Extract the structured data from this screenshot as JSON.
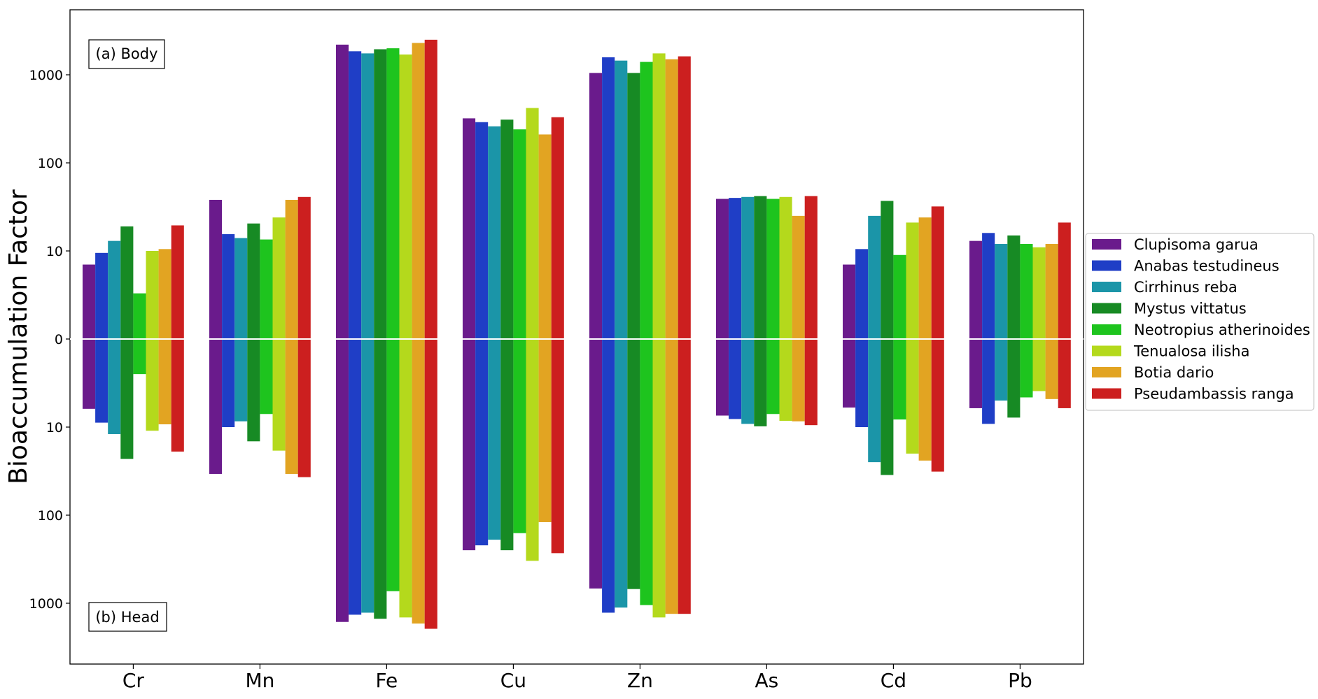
{
  "chart_data": {
    "type": "bar",
    "layout": "mirrored-log",
    "ylabel": "Bioaccumulation Factor",
    "categories": [
      "Cr",
      "Mn",
      "Fe",
      "Cu",
      "Zn",
      "As",
      "Cd",
      "Pb"
    ],
    "panels": {
      "top": "(a) Body",
      "bottom": "(b) Head"
    },
    "y_tick_labels": {
      "top": [
        "1000",
        "100",
        "10",
        "0"
      ],
      "bottom": [
        "10",
        "100",
        "1000"
      ]
    },
    "y_scale": "log",
    "ylim_top": [
      1,
      5000
    ],
    "ylim_bottom": [
      1,
      2500
    ],
    "legend_position": "right",
    "colors": [
      "#6a1b8c",
      "#1f3ec6",
      "#1b95a8",
      "#178a24",
      "#1ec41e",
      "#b4d91c",
      "#e2a422",
      "#cc1f1f"
    ],
    "series": [
      {
        "name": "Clupisoma garua",
        "body": [
          7.0,
          38.0,
          2200,
          320,
          1050,
          39,
          7.0,
          13.0
        ],
        "head": [
          6.2,
          34.0,
          1630,
          250,
          680,
          7.4,
          6.0,
          6.1
        ]
      },
      {
        "name": "Anabas testudineus",
        "body": [
          9.5,
          15.5,
          1850,
          290,
          1580,
          40,
          10.5,
          16.0
        ],
        "head": [
          8.9,
          10.0,
          1350,
          220,
          1280,
          8.1,
          10.0,
          9.2
        ]
      },
      {
        "name": "Cirrhinus reba",
        "body": [
          13.0,
          14.0,
          1750,
          260,
          1450,
          41,
          25.0,
          12.0
        ],
        "head": [
          12.0,
          8.6,
          1280,
          190,
          1120,
          9.2,
          25.0,
          5.0
        ]
      },
      {
        "name": "Mystus vittatus",
        "body": [
          19.0,
          20.5,
          1950,
          310,
          1050,
          42,
          37.0,
          15.0
        ],
        "head": [
          23.0,
          14.5,
          1500,
          250,
          690,
          9.8,
          35.0,
          7.8
        ]
      },
      {
        "name": "Neotropius atherinoides",
        "body": [
          3.3,
          13.5,
          2000,
          240,
          1400,
          39,
          9.0,
          12.0
        ],
        "head": [
          2.5,
          7.1,
          730,
          160,
          1050,
          7.1,
          8.2,
          4.6
        ]
      },
      {
        "name": "Tenualosa ilisha",
        "body": [
          10.0,
          24.0,
          1700,
          420,
          1750,
          41,
          21.0,
          11.0
        ],
        "head": [
          11.0,
          18.5,
          1450,
          330,
          1450,
          8.5,
          20.0,
          3.9
        ]
      },
      {
        "name": "Botia dario",
        "body": [
          10.5,
          38.0,
          2300,
          210,
          1500,
          25,
          24.0,
          12.0
        ],
        "head": [
          9.3,
          34.0,
          1700,
          120,
          1320,
          8.6,
          24.0,
          4.8
        ]
      },
      {
        "name": "Pseudambassis ranga",
        "body": [
          19.5,
          41.0,
          2500,
          330,
          1620,
          42,
          32.0,
          21.0
        ],
        "head": [
          19.0,
          37.0,
          1950,
          270,
          1320,
          9.5,
          32.0,
          6.1
        ]
      }
    ]
  }
}
